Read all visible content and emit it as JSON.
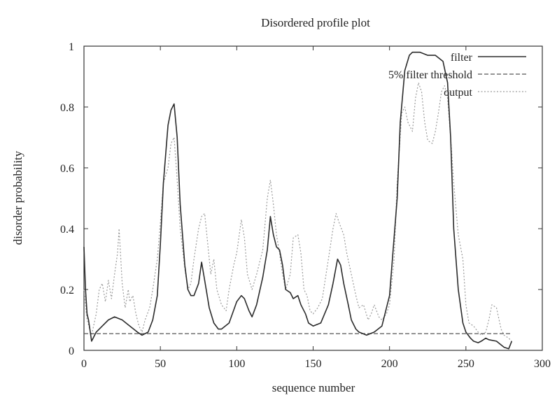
{
  "chart_data": {
    "type": "line",
    "title": "Disordered profile plot",
    "xlabel": "sequence number",
    "ylabel": "disorder probability",
    "xlim": [
      0,
      300
    ],
    "ylim": [
      0,
      1
    ],
    "xticks": [
      0,
      50,
      100,
      150,
      200,
      250,
      300
    ],
    "yticks": [
      0,
      0.2,
      0.4,
      0.6,
      0.8,
      1
    ],
    "xtick_labels": [
      "0",
      "50",
      "100",
      "150",
      "200",
      "250",
      "300"
    ],
    "ytick_labels": [
      "0",
      "0.2",
      "0.4",
      "0.6",
      "0.8",
      "1"
    ],
    "grid": false,
    "legend_position": "top-right",
    "series": [
      {
        "name": "filter",
        "style": "solid",
        "color": "#2b2b2b",
        "x": [
          0,
          1,
          2,
          3,
          5,
          8,
          12,
          16,
          20,
          25,
          30,
          35,
          38,
          42,
          45,
          48,
          50,
          52,
          55,
          57,
          59,
          61,
          63,
          66,
          68,
          70,
          72,
          75,
          77,
          79,
          82,
          85,
          88,
          90,
          95,
          100,
          103,
          105,
          108,
          110,
          113,
          117,
          120,
          122,
          124,
          126,
          128,
          130,
          132,
          135,
          137,
          140,
          142,
          145,
          147,
          150,
          155,
          160,
          163,
          166,
          168,
          170,
          173,
          175,
          178,
          180,
          185,
          190,
          195,
          200,
          205,
          207,
          210,
          213,
          215,
          220,
          225,
          230,
          235,
          238,
          240,
          242,
          245,
          248,
          250,
          253,
          255,
          258,
          260,
          263,
          265,
          270,
          275,
          278,
          280
        ],
        "values": [
          0.34,
          0.2,
          0.12,
          0.1,
          0.03,
          0.06,
          0.08,
          0.1,
          0.11,
          0.1,
          0.08,
          0.06,
          0.05,
          0.06,
          0.1,
          0.18,
          0.35,
          0.55,
          0.74,
          0.79,
          0.81,
          0.7,
          0.48,
          0.28,
          0.2,
          0.18,
          0.18,
          0.22,
          0.29,
          0.23,
          0.14,
          0.09,
          0.07,
          0.07,
          0.09,
          0.16,
          0.18,
          0.17,
          0.13,
          0.11,
          0.15,
          0.24,
          0.33,
          0.44,
          0.38,
          0.34,
          0.33,
          0.28,
          0.2,
          0.19,
          0.17,
          0.18,
          0.15,
          0.12,
          0.09,
          0.08,
          0.09,
          0.15,
          0.22,
          0.3,
          0.28,
          0.22,
          0.15,
          0.1,
          0.07,
          0.06,
          0.05,
          0.06,
          0.08,
          0.18,
          0.5,
          0.75,
          0.92,
          0.97,
          0.98,
          0.98,
          0.97,
          0.97,
          0.95,
          0.88,
          0.7,
          0.4,
          0.2,
          0.09,
          0.06,
          0.04,
          0.03,
          0.025,
          0.03,
          0.04,
          0.035,
          0.03,
          0.01,
          0.005,
          0.03
        ]
      },
      {
        "name": "5% filter threshold",
        "style": "dashed",
        "color": "#555555",
        "x": [
          0,
          280
        ],
        "values": [
          0.055,
          0.055
        ]
      },
      {
        "name": "output",
        "style": "dotted",
        "color": "#9a9a9a",
        "x": [
          0,
          2,
          5,
          8,
          10,
          12,
          14,
          16,
          18,
          20,
          22,
          23,
          25,
          27,
          29,
          30,
          32,
          34,
          36,
          38,
          40,
          43,
          45,
          48,
          50,
          52,
          55,
          57,
          59,
          61,
          63,
          66,
          68,
          70,
          72,
          75,
          77,
          79,
          81,
          83,
          85,
          87,
          90,
          93,
          95,
          98,
          100,
          103,
          105,
          107,
          110,
          113,
          117,
          120,
          122,
          124,
          126,
          128,
          130,
          132,
          135,
          137,
          140,
          142,
          144,
          146,
          148,
          150,
          153,
          156,
          160,
          163,
          165,
          167,
          170,
          172,
          175,
          178,
          180,
          183,
          186,
          188,
          190,
          193,
          195,
          198,
          200,
          203,
          205,
          208,
          210,
          212,
          215,
          217,
          219,
          221,
          223,
          225,
          228,
          230,
          232,
          234,
          236,
          238,
          240,
          242,
          245,
          248,
          250,
          252,
          255,
          258,
          260,
          263,
          265,
          267,
          270,
          273,
          275,
          278,
          280
        ],
        "values": [
          0.2,
          0.1,
          0.05,
          0.12,
          0.2,
          0.22,
          0.16,
          0.23,
          0.17,
          0.25,
          0.32,
          0.4,
          0.22,
          0.14,
          0.2,
          0.16,
          0.18,
          0.12,
          0.08,
          0.06,
          0.1,
          0.14,
          0.2,
          0.3,
          0.42,
          0.55,
          0.6,
          0.68,
          0.7,
          0.56,
          0.4,
          0.27,
          0.2,
          0.22,
          0.3,
          0.4,
          0.44,
          0.45,
          0.35,
          0.25,
          0.3,
          0.2,
          0.15,
          0.13,
          0.2,
          0.28,
          0.32,
          0.43,
          0.37,
          0.25,
          0.2,
          0.25,
          0.33,
          0.5,
          0.56,
          0.48,
          0.38,
          0.32,
          0.25,
          0.2,
          0.25,
          0.37,
          0.38,
          0.32,
          0.2,
          0.18,
          0.13,
          0.12,
          0.14,
          0.17,
          0.3,
          0.4,
          0.45,
          0.42,
          0.38,
          0.32,
          0.25,
          0.18,
          0.14,
          0.15,
          0.1,
          0.12,
          0.15,
          0.11,
          0.1,
          0.12,
          0.15,
          0.3,
          0.55,
          0.78,
          0.8,
          0.75,
          0.72,
          0.83,
          0.88,
          0.85,
          0.75,
          0.69,
          0.68,
          0.72,
          0.78,
          0.85,
          0.87,
          0.83,
          0.7,
          0.55,
          0.38,
          0.3,
          0.15,
          0.09,
          0.08,
          0.06,
          0.05,
          0.06,
          0.1,
          0.15,
          0.14,
          0.07,
          0.05,
          0.04,
          0.03
        ]
      }
    ]
  }
}
